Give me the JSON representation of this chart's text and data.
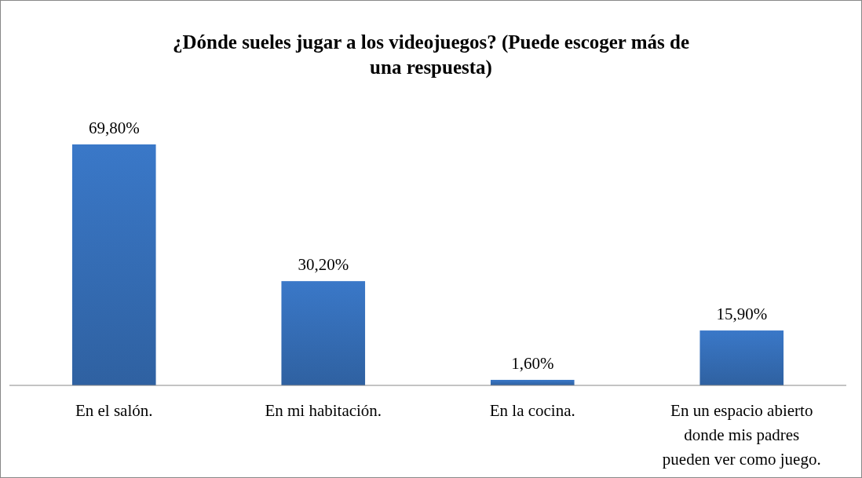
{
  "chart_data": {
    "type": "bar",
    "title": "¿Dónde sueles jugar a los videojuegos? (Puede escoger más de una respuesta)",
    "categories": [
      "En el salón.",
      "En mi habitación.",
      "En la cocina.",
      "En un espacio abierto donde mis padres pueden ver como juego."
    ],
    "values": [
      69.8,
      30.2,
      1.6,
      15.9
    ],
    "value_labels": [
      "69,80%",
      "30,20%",
      "1,60%",
      "15,90%"
    ],
    "color": "#3a78c8"
  }
}
